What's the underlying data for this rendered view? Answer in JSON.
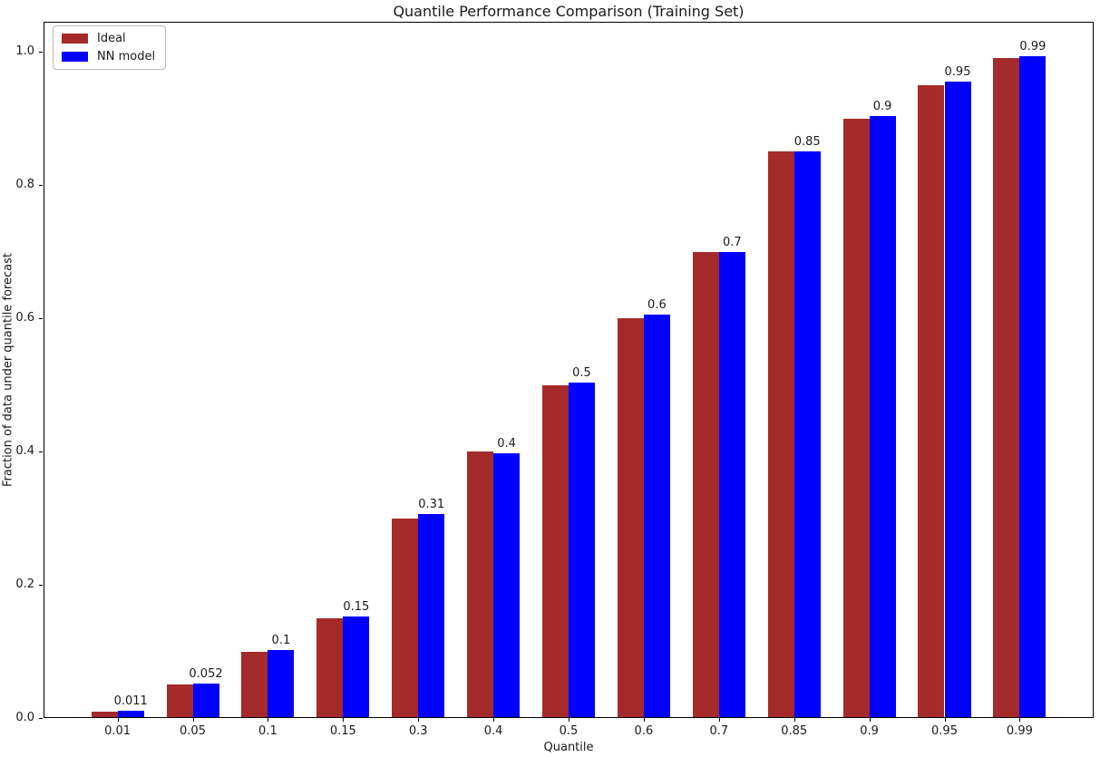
{
  "chart_data": {
    "type": "bar",
    "title": "Quantile Performance Comparison (Training Set)",
    "xlabel": "Quantile",
    "ylabel": "Fraction of data under quantile forecast",
    "categories": [
      "0.01",
      "0.05",
      "0.1",
      "0.15",
      "0.3",
      "0.4",
      "0.5",
      "0.6",
      "0.7",
      "0.85",
      "0.9",
      "0.95",
      "0.99"
    ],
    "series": [
      {
        "name": "Ideal",
        "color": "#A52A2A",
        "values": [
          0.01,
          0.05,
          0.1,
          0.15,
          0.3,
          0.4,
          0.5,
          0.6,
          0.7,
          0.85,
          0.9,
          0.95,
          0.99
        ]
      },
      {
        "name": "NN model",
        "color": "#0000FF",
        "values": [
          0.011,
          0.052,
          0.102,
          0.152,
          0.306,
          0.398,
          0.503,
          0.605,
          0.7,
          0.851,
          0.903,
          0.955,
          0.993
        ]
      }
    ],
    "bar_labels": [
      "0.011",
      "0.052",
      "0.1",
      "0.15",
      "0.31",
      "0.4",
      "0.5",
      "0.6",
      "0.7",
      "0.85",
      "0.9",
      "0.95",
      "0.99"
    ],
    "yticks": [
      "0.0",
      "0.2",
      "0.4",
      "0.6",
      "0.8",
      "1.0"
    ],
    "ylim": [
      0,
      1.045
    ],
    "grid": false,
    "legend_position": "upper-left",
    "spine_color": "#000000"
  }
}
